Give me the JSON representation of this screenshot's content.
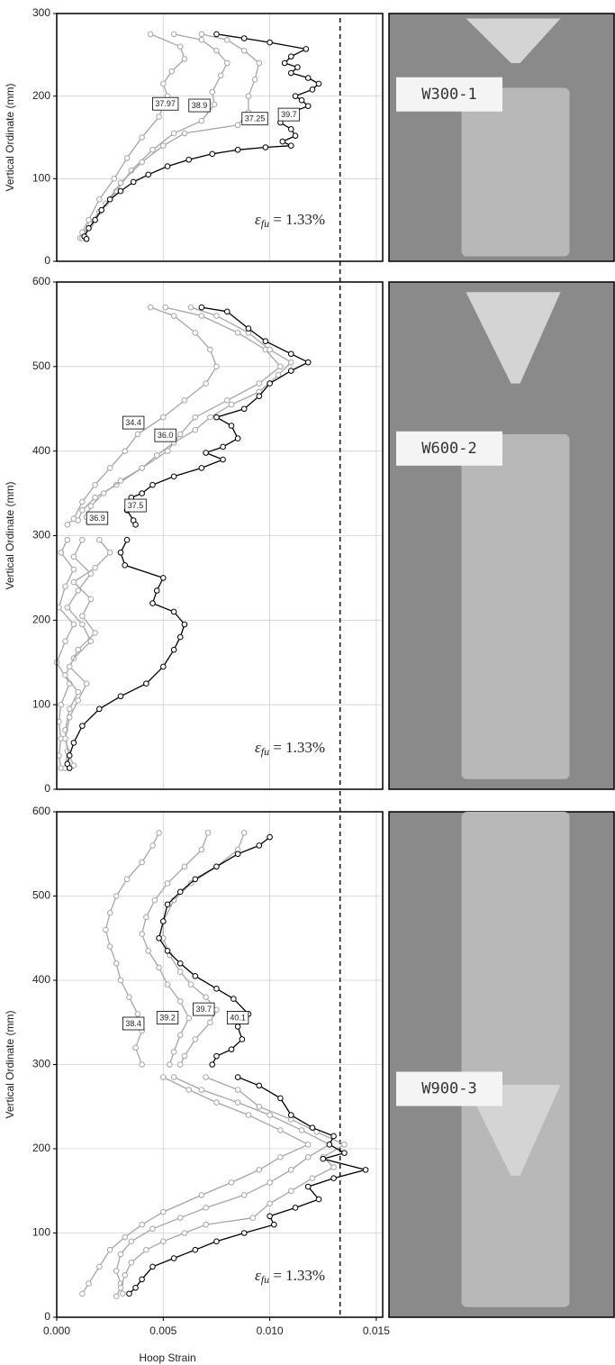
{
  "chart_data": [
    {
      "type": "line",
      "ylabel": "Vertical Ordinate (mm)",
      "photo_label": "W300-1",
      "xlim": [
        0,
        0.0153
      ],
      "xticks": [
        0,
        0.005,
        0.01,
        0.015
      ],
      "ylim": [
        0,
        300
      ],
      "yticks": [
        0,
        100,
        200,
        300
      ],
      "grid": true,
      "limit": 0.0133,
      "limit_symbol": "ε",
      "limit_subscript": "fu",
      "limit_text": " = 1.33%",
      "series": [
        {
          "color": "#a6a6a6",
          "x": [
            0.0044,
            0.0058,
            0.006,
            0.0054,
            0.005,
            0.0052,
            0.0048,
            0.004,
            0.0033,
            0.0027,
            0.002,
            0.0015,
            0.0012,
            0.0011
          ],
          "y": [
            275,
            260,
            245,
            230,
            215,
            200,
            175,
            150,
            125,
            100,
            75,
            50,
            35,
            28
          ]
        },
        {
          "color": "#a6a6a6",
          "x": [
            0.0055,
            0.0068,
            0.0075,
            0.008,
            0.0077,
            0.0073,
            0.0074,
            0.0068,
            0.0055,
            0.0045,
            0.0035,
            0.0028,
            0.002,
            0.0014,
            0.0012
          ],
          "y": [
            275,
            268,
            255,
            240,
            225,
            205,
            190,
            170,
            155,
            135,
            110,
            85,
            60,
            40,
            28
          ]
        },
        {
          "color": "#a6a6a6",
          "x": [
            0.0068,
            0.008,
            0.0088,
            0.0095,
            0.0093,
            0.009,
            0.009,
            0.0085,
            0.006,
            0.005,
            0.004,
            0.003,
            0.0023,
            0.0016,
            0.0013
          ],
          "y": [
            275,
            268,
            255,
            240,
            220,
            200,
            180,
            165,
            155,
            140,
            120,
            95,
            70,
            45,
            30
          ]
        },
        {
          "color": "#000000",
          "x": [
            0.0075,
            0.0088,
            0.01,
            0.0117,
            0.011,
            0.0107,
            0.0113,
            0.011,
            0.0118,
            0.0123,
            0.012,
            0.0112,
            0.0115,
            0.0118,
            0.0112,
            0.0108,
            0.0105,
            0.011,
            0.0112,
            0.0106,
            0.011,
            0.0098,
            0.0085,
            0.0073,
            0.0062,
            0.0052,
            0.0043,
            0.0036,
            0.003,
            0.0025,
            0.0021,
            0.0018,
            0.0015,
            0.0013,
            0.0014
          ],
          "y": [
            275,
            270,
            265,
            257,
            248,
            240,
            235,
            228,
            222,
            215,
            208,
            200,
            195,
            188,
            182,
            175,
            168,
            160,
            152,
            145,
            140,
            138,
            135,
            130,
            123,
            115,
            105,
            96,
            85,
            75,
            62,
            50,
            40,
            30,
            27
          ]
        }
      ],
      "annotations": [
        {
          "text": "37.97",
          "x": 0.0051,
          "y": 190
        },
        {
          "text": "38.9",
          "x": 0.0067,
          "y": 188
        },
        {
          "text": "37.25",
          "x": 0.0093,
          "y": 172
        },
        {
          "text": "39.7",
          "x": 0.0109,
          "y": 177
        }
      ]
    },
    {
      "type": "line",
      "ylabel": "Vertical Ordinate (mm)",
      "photo_label": "W600-2",
      "xlim": [
        0,
        0.0153
      ],
      "xticks": [
        0,
        0.005,
        0.01,
        0.015
      ],
      "ylim": [
        0,
        600
      ],
      "yticks": [
        0,
        100,
        200,
        300,
        400,
        500,
        600
      ],
      "grid": true,
      "limit": 0.0133,
      "limit_symbol": "ε",
      "limit_subscript": "fu",
      "limit_text": " = 1.33%",
      "series": [
        {
          "color": "#a6a6a6",
          "x": [
            0.0044,
            0.0055,
            0.0065,
            0.0072,
            0.0075,
            0.007,
            0.006,
            0.005,
            0.0038,
            0.0032,
            0.0025,
            0.0018,
            0.0012,
            0.0008,
            0.0005,
            null,
            0.0005,
            0.0002,
            0.0008,
            0.0004,
            0.0001,
            0.0008,
            0.0004,
            0.0,
            0.0006,
            0.0002,
            0.0001,
            0.0002,
            0.0001,
            0.0002
          ],
          "y": [
            570,
            560,
            540,
            520,
            500,
            480,
            460,
            440,
            420,
            400,
            380,
            360,
            340,
            320,
            313,
            null,
            295,
            280,
            260,
            240,
            215,
            195,
            175,
            150,
            125,
            100,
            80,
            60,
            40,
            25
          ]
        },
        {
          "color": "#a6a6a6",
          "x": [
            0.0051,
            0.0068,
            0.0085,
            0.0098,
            0.0105,
            0.0095,
            0.008,
            0.0065,
            0.0058,
            0.0052,
            0.004,
            0.0028,
            0.0018,
            0.0012,
            0.001,
            null,
            0.0012,
            0.0008,
            0.0016,
            0.001,
            0.0005,
            0.0012,
            0.0016,
            0.0008,
            0.0004,
            0.001,
            0.0006,
            0.0004,
            0.0005,
            0.0004
          ],
          "y": [
            570,
            560,
            540,
            520,
            500,
            480,
            460,
            440,
            420,
            400,
            380,
            360,
            345,
            330,
            318,
            null,
            295,
            275,
            255,
            235,
            215,
            195,
            175,
            155,
            135,
            115,
            95,
            70,
            45,
            25
          ]
        },
        {
          "color": "#a6a6a6",
          "x": [
            0.0063,
            0.0075,
            0.009,
            0.01,
            0.011,
            0.0104,
            0.0095,
            0.0082,
            0.0072,
            0.0065,
            0.0055,
            0.0047,
            0.004,
            0.003,
            0.0022,
            0.0016,
            0.0014,
            0.0015,
            null,
            0.002,
            0.0025,
            0.0018,
            0.0008,
            0.0016,
            0.0012,
            0.0018,
            0.001,
            0.0006,
            0.0014,
            0.001,
            0.0006,
            0.0004,
            0.0006,
            0.0008
          ],
          "y": [
            570,
            560,
            540,
            520,
            505,
            490,
            470,
            455,
            440,
            425,
            410,
            395,
            380,
            365,
            350,
            335,
            322,
            316,
            null,
            295,
            280,
            262,
            245,
            225,
            205,
            185,
            165,
            145,
            125,
            105,
            85,
            60,
            40,
            28
          ]
        },
        {
          "color": "#000000",
          "x": [
            0.0068,
            0.008,
            0.009,
            0.0098,
            0.011,
            0.0118,
            0.011,
            0.01,
            0.0095,
            0.0088,
            0.0075,
            0.0082,
            0.0085,
            0.0078,
            0.007,
            0.0078,
            0.0068,
            0.0055,
            0.0045,
            0.004,
            0.0035,
            0.0033,
            0.0036,
            0.0037,
            null,
            0.0033,
            0.003,
            0.0032,
            0.005,
            0.0047,
            0.0045,
            0.0055,
            0.006,
            0.0058,
            0.0055,
            0.005,
            0.0042,
            0.003,
            0.002,
            0.0012,
            0.0008,
            0.0006,
            0.0005,
            0.0006
          ],
          "y": [
            570,
            565,
            545,
            530,
            515,
            505,
            495,
            480,
            465,
            450,
            440,
            430,
            415,
            405,
            398,
            390,
            380,
            370,
            360,
            350,
            345,
            330,
            318,
            313,
            null,
            295,
            280,
            265,
            250,
            235,
            220,
            210,
            195,
            180,
            165,
            145,
            125,
            110,
            95,
            75,
            55,
            40,
            30,
            25
          ]
        }
      ],
      "annotations": [
        {
          "text": "34.4",
          "x": 0.0036,
          "y": 433
        },
        {
          "text": "36.0",
          "x": 0.0051,
          "y": 418
        },
        {
          "text": "37.5",
          "x": 0.0037,
          "y": 335
        },
        {
          "text": "36.9",
          "x": 0.0019,
          "y": 320
        }
      ]
    },
    {
      "type": "line",
      "ylabel": "Vertical Ordinate (mm)",
      "xlabel": "Hoop Strain",
      "photo_label": "W900-3",
      "xlim": [
        0,
        0.0153
      ],
      "xticks": [
        {
          "value": 0,
          "label": "0.000"
        },
        {
          "value": 0.005,
          "label": "0.005"
        },
        {
          "value": 0.01,
          "label": "0.010"
        },
        {
          "value": 0.015,
          "label": "0.015"
        }
      ],
      "ylim": [
        0,
        600
      ],
      "yticks": [
        0,
        100,
        200,
        300,
        400,
        500,
        600
      ],
      "grid": true,
      "limit": 0.0133,
      "limit_symbol": "ε",
      "limit_subscript": "fu",
      "limit_text": " = 1.33%",
      "series": [
        {
          "color": "#a6a6a6",
          "x": [
            0.0048,
            0.0045,
            0.004,
            0.0033,
            0.0028,
            0.0025,
            0.0023,
            0.0025,
            0.0028,
            0.003,
            0.0034,
            0.0038,
            0.004,
            0.0037,
            0.004,
            null,
            0.005,
            0.0062,
            0.0075,
            0.009,
            0.0105,
            0.0118,
            0.0105,
            0.0095,
            0.0082,
            0.0068,
            0.005,
            0.004,
            0.0032,
            0.0025,
            0.002,
            0.0015,
            0.0012
          ],
          "y": [
            575,
            560,
            540,
            520,
            500,
            480,
            460,
            440,
            420,
            400,
            380,
            360,
            340,
            320,
            300,
            null,
            285,
            270,
            255,
            240,
            222,
            205,
            190,
            175,
            160,
            145,
            125,
            110,
            95,
            80,
            60,
            40,
            28
          ]
        },
        {
          "color": "#a6a6a6",
          "x": [
            0.0071,
            0.0068,
            0.006,
            0.0052,
            0.0046,
            0.0042,
            0.004,
            0.0043,
            0.0048,
            0.0052,
            0.0058,
            0.0062,
            0.0058,
            0.0055,
            0.0053,
            null,
            0.0055,
            0.0068,
            0.0085,
            0.01,
            0.0115,
            0.0128,
            0.0118,
            0.011,
            0.01,
            0.0088,
            0.007,
            0.0058,
            0.0045,
            0.0035,
            0.003,
            0.0028,
            0.003,
            0.0031
          ],
          "y": [
            575,
            555,
            535,
            515,
            495,
            475,
            455,
            435,
            415,
            395,
            375,
            355,
            335,
            315,
            300,
            null,
            285,
            270,
            255,
            240,
            222,
            205,
            190,
            175,
            160,
            145,
            130,
            118,
            105,
            90,
            75,
            55,
            40,
            28
          ]
        },
        {
          "color": "#a6a6a6",
          "x": [
            0.0088,
            0.0085,
            0.0075,
            0.0063,
            0.0055,
            0.005,
            0.005,
            0.0053,
            0.0058,
            0.0063,
            0.007,
            0.0075,
            0.0072,
            0.0065,
            0.006,
            0.0058,
            null,
            0.007,
            0.0085,
            0.0095,
            0.011,
            0.0122,
            0.0135,
            0.0125,
            0.013,
            0.012,
            0.011,
            0.01,
            0.0092,
            0.007,
            0.006,
            0.005,
            0.0042,
            0.0035,
            0.0032,
            0.003,
            0.0028
          ],
          "y": [
            575,
            555,
            535,
            515,
            495,
            470,
            450,
            430,
            410,
            395,
            380,
            365,
            350,
            330,
            310,
            300,
            null,
            285,
            270,
            250,
            235,
            220,
            205,
            190,
            178,
            165,
            150,
            135,
            118,
            110,
            100,
            90,
            80,
            65,
            50,
            35,
            25
          ]
        },
        {
          "color": "#000000",
          "x": [
            0.01,
            0.0095,
            0.0085,
            0.0075,
            0.0065,
            0.0058,
            0.0052,
            0.005,
            0.0048,
            0.0052,
            0.0058,
            0.0065,
            0.0075,
            0.0083,
            0.009,
            0.0085,
            0.0087,
            0.0082,
            0.0075,
            0.0073,
            null,
            0.0085,
            0.0095,
            0.0105,
            0.011,
            0.012,
            0.013,
            0.0128,
            0.0135,
            0.0125,
            0.0145,
            0.013,
            0.0118,
            0.0123,
            0.0112,
            0.01,
            0.0102,
            0.0088,
            0.0075,
            0.0065,
            0.0055,
            0.0045,
            0.004,
            0.0037,
            0.0034
          ],
          "y": [
            570,
            560,
            550,
            535,
            520,
            505,
            490,
            470,
            450,
            435,
            420,
            405,
            390,
            378,
            360,
            345,
            330,
            318,
            310,
            300,
            null,
            285,
            275,
            260,
            240,
            225,
            215,
            205,
            195,
            188,
            175,
            165,
            155,
            140,
            130,
            120,
            110,
            100,
            90,
            80,
            70,
            60,
            45,
            35,
            28
          ]
        }
      ],
      "annotations": [
        {
          "text": "38.4",
          "x": 0.0036,
          "y": 348
        },
        {
          "text": "39.2",
          "x": 0.0052,
          "y": 355
        },
        {
          "text": "39.7",
          "x": 0.0069,
          "y": 365
        },
        {
          "text": "40.1",
          "x": 0.0085,
          "y": 355
        }
      ]
    }
  ]
}
